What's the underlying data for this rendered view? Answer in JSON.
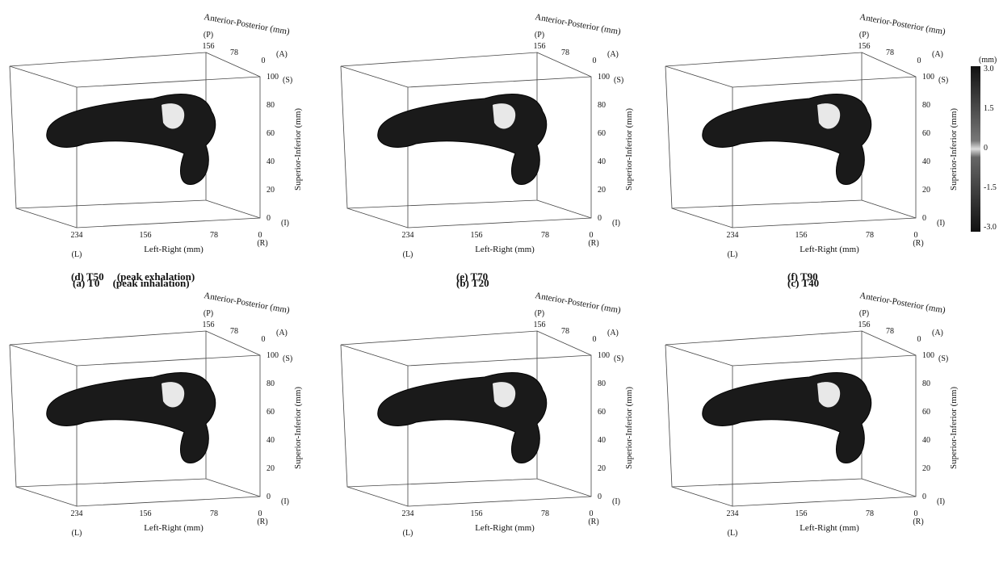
{
  "axes": {
    "ap_label": "Anterior-Posterior (mm)",
    "si_label": "Superior-Inferior (mm)",
    "lr_label": "Left-Right (mm)",
    "ap_ticks": [
      "156",
      "78",
      "0"
    ],
    "si_ticks": [
      "100",
      "80",
      "60",
      "40",
      "20",
      "0"
    ],
    "lr_ticks": [
      "234",
      "156",
      "78",
      "0"
    ],
    "marks": {
      "P": "(P)",
      "A": "(A)",
      "S": "(S)",
      "I": "(I)",
      "L": "(L)",
      "R": "(R)"
    }
  },
  "colorbar": {
    "unit": "(mm)",
    "ticks": [
      "3.0",
      "1.5",
      "0",
      "-1.5",
      "-3.0"
    ]
  },
  "panels": [
    {
      "caption": "(a) T0     (peak inhalation)"
    },
    {
      "caption": "(b) T20"
    },
    {
      "caption": "(c) T40"
    },
    {
      "caption": "(d) T50     (peak exhalation)"
    },
    {
      "caption": "(e) T70"
    },
    {
      "caption": "(f) T90"
    }
  ]
}
